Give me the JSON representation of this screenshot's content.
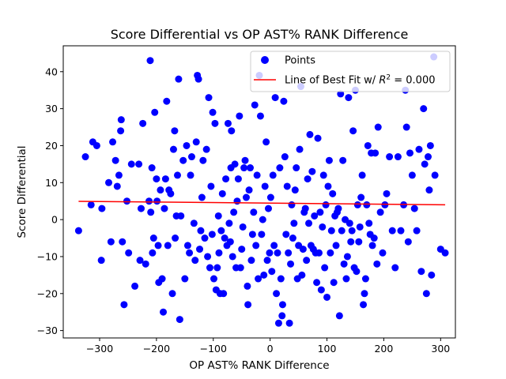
{
  "chart_data": {
    "type": "scatter",
    "title": "Score Differential vs OP AST% RANK Difference",
    "xlabel": "OP AST% RANK Difference",
    "ylabel": "Score Differential",
    "xlim": [
      -364,
      326
    ],
    "ylim": [
      -32,
      47
    ],
    "xticks": [
      -300,
      -200,
      -100,
      0,
      100,
      200,
      300
    ],
    "yticks": [
      -30,
      -20,
      -10,
      0,
      10,
      20,
      30,
      40
    ],
    "grid": false,
    "legend_placement": "top-right",
    "colors": {
      "points": "#0000ff",
      "fit_line": "#ff0000"
    },
    "series": [
      {
        "name": "Points",
        "points": [
          [
            -337,
            -3
          ],
          [
            -325,
            17
          ],
          [
            -315,
            4
          ],
          [
            -312,
            21
          ],
          [
            -305,
            20
          ],
          [
            -297,
            -11
          ],
          [
            -296,
            3
          ],
          [
            -284,
            10
          ],
          [
            -280,
            -6
          ],
          [
            -277,
            21
          ],
          [
            -272,
            16
          ],
          [
            -269,
            9
          ],
          [
            -266,
            12
          ],
          [
            -263,
            24
          ],
          [
            -262,
            27
          ],
          [
            -260,
            -6
          ],
          [
            -257,
            -23
          ],
          [
            -252,
            5
          ],
          [
            -249,
            -9
          ],
          [
            -244,
            15
          ],
          [
            -238,
            -18
          ],
          [
            -231,
            15
          ],
          [
            -229,
            -11
          ],
          [
            -227,
            3
          ],
          [
            -224,
            26
          ],
          [
            -219,
            -12
          ],
          [
            -213,
            5
          ],
          [
            -211,
            43
          ],
          [
            -210,
            2
          ],
          [
            -208,
            14
          ],
          [
            -207,
            -9
          ],
          [
            -205,
            -5
          ],
          [
            -203,
            29
          ],
          [
            -200,
            11
          ],
          [
            -199,
            5
          ],
          [
            -197,
            -7
          ],
          [
            -196,
            -17
          ],
          [
            -193,
            8
          ],
          [
            -190,
            -16
          ],
          [
            -188,
            -25
          ],
          [
            -186,
            3
          ],
          [
            -184,
            11
          ],
          [
            -182,
            32
          ],
          [
            -180,
            -7
          ],
          [
            -178,
            8
          ],
          [
            -175,
            7
          ],
          [
            -172,
            -20
          ],
          [
            -170,
            19
          ],
          [
            -168,
            24
          ],
          [
            -167,
            -5
          ],
          [
            -165,
            1
          ],
          [
            -163,
            12
          ],
          [
            -161,
            38
          ],
          [
            -159,
            -27
          ],
          [
            -157,
            1
          ],
          [
            -153,
            16
          ],
          [
            -150,
            -16
          ],
          [
            -147,
            20
          ],
          [
            -145,
            -7
          ],
          [
            -142,
            -9
          ],
          [
            -140,
            12
          ],
          [
            -138,
            17
          ],
          [
            -134,
            -1
          ],
          [
            -132,
            -11
          ],
          [
            -130,
            21
          ],
          [
            -128,
            39
          ],
          [
            -126,
            38
          ],
          [
            -124,
            -8
          ],
          [
            -122,
            -3
          ],
          [
            -120,
            6
          ],
          [
            -118,
            16
          ],
          [
            -115,
            -5
          ],
          [
            -112,
            19
          ],
          [
            -110,
            -10
          ],
          [
            -108,
            33
          ],
          [
            -106,
            -13
          ],
          [
            -104,
            9
          ],
          [
            -102,
            -4
          ],
          [
            -101,
            29
          ],
          [
            -99,
            -16
          ],
          [
            -97,
            26
          ],
          [
            -95,
            -19
          ],
          [
            -93,
            -13
          ],
          [
            -91,
            1
          ],
          [
            -90,
            -9
          ],
          [
            -88,
            -20
          ],
          [
            -86,
            -3
          ],
          [
            -84,
            7
          ],
          [
            -82,
            -20
          ],
          [
            -80,
            -5
          ],
          [
            -78,
            11
          ],
          [
            -76,
            -7
          ],
          [
            -74,
            26
          ],
          [
            -72,
            -1
          ],
          [
            -70,
            -6
          ],
          [
            -69,
            14
          ],
          [
            -68,
            24
          ],
          [
            -66,
            -10
          ],
          [
            -64,
            2
          ],
          [
            -62,
            15
          ],
          [
            -60,
            -13
          ],
          [
            -58,
            5
          ],
          [
            -56,
            11
          ],
          [
            -54,
            28
          ],
          [
            -52,
            -13
          ],
          [
            -50,
            -8
          ],
          [
            -48,
            -2
          ],
          [
            -46,
            14
          ],
          [
            -44,
            16
          ],
          [
            -42,
            6
          ],
          [
            -40,
            -18
          ],
          [
            -39,
            -23
          ],
          [
            -37,
            8
          ],
          [
            -35,
            14
          ],
          [
            -33,
            -11
          ],
          [
            -31,
            -4
          ],
          [
            -29,
            2
          ],
          [
            -27,
            31
          ],
          [
            -25,
            -7
          ],
          [
            -23,
            12
          ],
          [
            -21,
            -16
          ],
          [
            -19,
            39
          ],
          [
            -17,
            28
          ],
          [
            -15,
            -4
          ],
          [
            -13,
            0
          ],
          [
            -11,
            -15
          ],
          [
            -9,
            9
          ],
          [
            -7,
            21
          ],
          [
            -5,
            -11
          ],
          [
            -3,
            3
          ],
          [
            -1,
            -9
          ],
          [
            1,
            6
          ],
          [
            3,
            -14
          ],
          [
            5,
            12
          ],
          [
            7,
            -7
          ],
          [
            9,
            33
          ],
          [
            11,
            -20
          ],
          [
            13,
            -9
          ],
          [
            15,
            -28
          ],
          [
            17,
            14
          ],
          [
            19,
            -16
          ],
          [
            21,
            -26
          ],
          [
            22,
            -23
          ],
          [
            24,
            32
          ],
          [
            26,
            17
          ],
          [
            28,
            -4
          ],
          [
            30,
            9
          ],
          [
            32,
            -9
          ],
          [
            34,
            -28
          ],
          [
            36,
            -12
          ],
          [
            38,
            4
          ],
          [
            40,
            -5
          ],
          [
            42,
            -1
          ],
          [
            44,
            8
          ],
          [
            46,
            14
          ],
          [
            48,
            -16
          ],
          [
            50,
            -7
          ],
          [
            52,
            19
          ],
          [
            54,
            36
          ],
          [
            56,
            -15
          ],
          [
            58,
            -8
          ],
          [
            60,
            2
          ],
          [
            62,
            3
          ],
          [
            64,
            -11
          ],
          [
            66,
            11
          ],
          [
            68,
            -1
          ],
          [
            70,
            23
          ],
          [
            72,
            -7
          ],
          [
            74,
            13
          ],
          [
            76,
            -8
          ],
          [
            78,
            1
          ],
          [
            80,
            -9
          ],
          [
            82,
            -17
          ],
          [
            84,
            22
          ],
          [
            86,
            -9
          ],
          [
            88,
            2
          ],
          [
            90,
            -19
          ],
          [
            92,
            -2
          ],
          [
            94,
            12
          ],
          [
            96,
            -13
          ],
          [
            98,
            4
          ],
          [
            100,
            -21
          ],
          [
            102,
            9
          ],
          [
            104,
            16
          ],
          [
            106,
            -9
          ],
          [
            108,
            -3
          ],
          [
            110,
            7
          ],
          [
            112,
            -17
          ],
          [
            114,
            1
          ],
          [
            116,
            -7
          ],
          [
            118,
            2
          ],
          [
            120,
            3
          ],
          [
            122,
            -26
          ],
          [
            124,
            34
          ],
          [
            126,
            -3
          ],
          [
            128,
            16
          ],
          [
            130,
            -12
          ],
          [
            132,
            0
          ],
          [
            134,
            -16
          ],
          [
            136,
            -10
          ],
          [
            138,
            33
          ],
          [
            140,
            -1
          ],
          [
            142,
            -6
          ],
          [
            144,
            -3
          ],
          [
            146,
            24
          ],
          [
            148,
            -13
          ],
          [
            150,
            35
          ],
          [
            152,
            -14
          ],
          [
            154,
            4
          ],
          [
            156,
            -6
          ],
          [
            158,
            -2
          ],
          [
            160,
            6
          ],
          [
            162,
            12
          ],
          [
            164,
            -23
          ],
          [
            166,
            -20
          ],
          [
            168,
            -16
          ],
          [
            170,
            4
          ],
          [
            172,
            20
          ],
          [
            174,
            -1
          ],
          [
            176,
            -4
          ],
          [
            178,
            18
          ],
          [
            180,
            -7
          ],
          [
            183,
            -5
          ],
          [
            185,
            18
          ],
          [
            188,
            -12
          ],
          [
            190,
            25
          ],
          [
            194,
            2
          ],
          [
            198,
            -9
          ],
          [
            202,
            4
          ],
          [
            205,
            7
          ],
          [
            210,
            17
          ],
          [
            215,
            -3
          ],
          [
            220,
            -13
          ],
          [
            225,
            17
          ],
          [
            230,
            -3
          ],
          [
            235,
            4
          ],
          [
            238,
            35
          ],
          [
            240,
            25
          ],
          [
            243,
            -6
          ],
          [
            246,
            18
          ],
          [
            250,
            12
          ],
          [
            254,
            3
          ],
          [
            258,
            -3
          ],
          [
            262,
            19
          ],
          [
            266,
            -14
          ],
          [
            270,
            30
          ],
          [
            272,
            15
          ],
          [
            275,
            -20
          ],
          [
            278,
            17
          ],
          [
            280,
            8
          ],
          [
            282,
            20
          ],
          [
            284,
            -15
          ],
          [
            288,
            44
          ],
          [
            290,
            12
          ],
          [
            300,
            -8
          ],
          [
            308,
            -9
          ]
        ]
      },
      {
        "name": "Line of Best Fit w/ R^2 = 0.000",
        "line": {
          "x": [
            -337,
            308
          ],
          "y": [
            4.95,
            4.0
          ]
        }
      }
    ],
    "legend": {
      "points_label": "Points",
      "fit_label_prefix": "Line of Best Fit w/ ",
      "fit_label_r": "R",
      "fit_label_exp": "2",
      "fit_label_suffix": " = 0.000"
    }
  }
}
